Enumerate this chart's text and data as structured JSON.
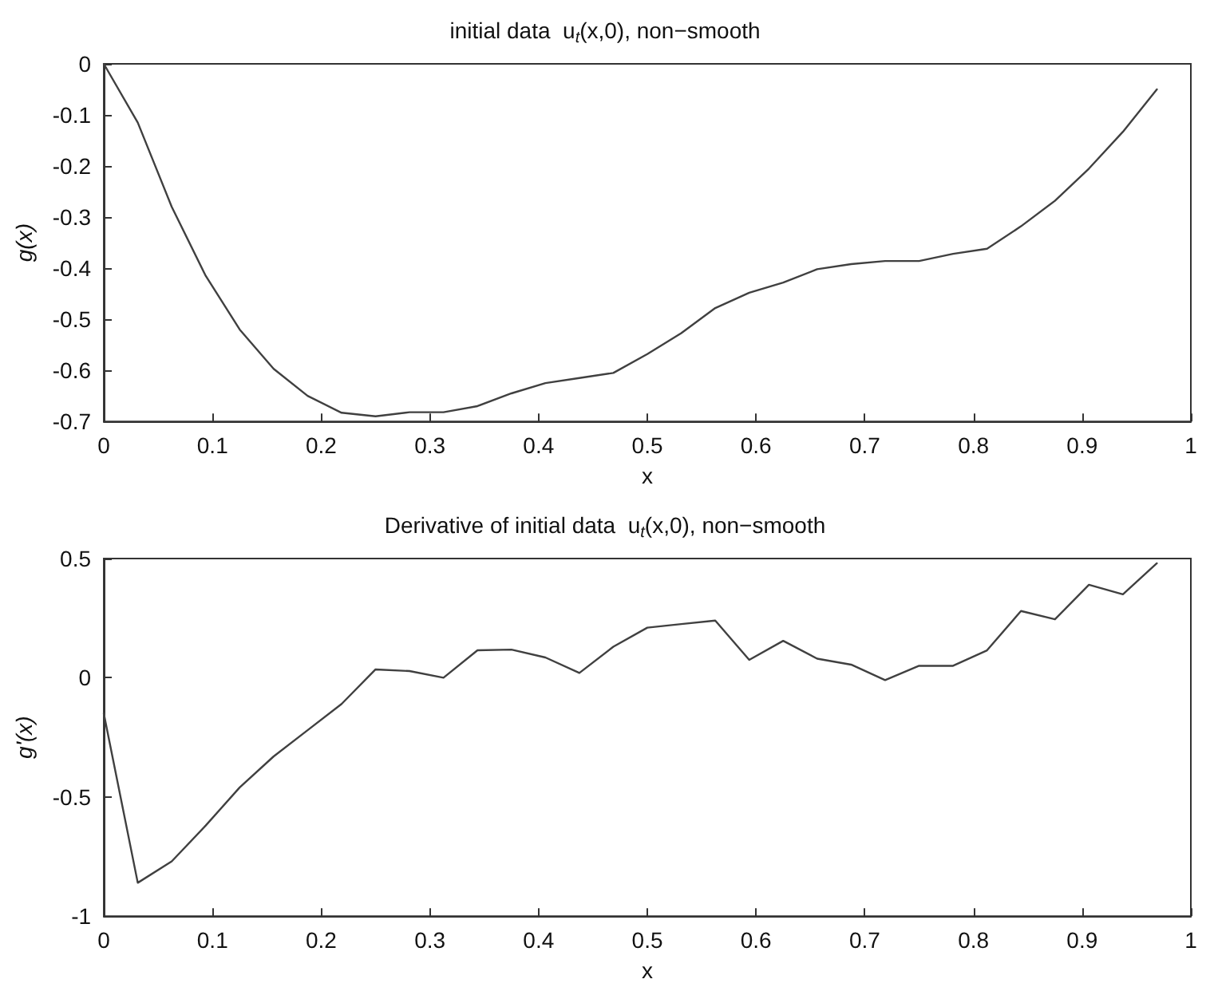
{
  "chart_data": [
    {
      "type": "line",
      "title": "initial data  u$_{t}$(x,0), non−smooth",
      "xlabel": "x",
      "ylabel": "g(x)",
      "x": [
        0,
        0.03125,
        0.0625,
        0.09375,
        0.125,
        0.15625,
        0.1875,
        0.21875,
        0.25,
        0.28125,
        0.3125,
        0.34375,
        0.375,
        0.40625,
        0.4375,
        0.46875,
        0.5,
        0.53125,
        0.5625,
        0.59375,
        0.625,
        0.65625,
        0.6875,
        0.71875,
        0.75,
        0.78125,
        0.8125,
        0.84375,
        0.875,
        0.90625,
        0.9375,
        0.96875
      ],
      "series": [
        {
          "color": "#404040",
          "values": [
            0,
            -0.115,
            -0.28,
            -0.415,
            -0.52,
            -0.597,
            -0.65,
            -0.683,
            -0.69,
            -0.682,
            -0.682,
            -0.67,
            -0.645,
            -0.625,
            -0.615,
            -0.605,
            -0.568,
            -0.527,
            -0.478,
            -0.448,
            -0.428,
            -0.402,
            -0.392,
            -0.386,
            -0.386,
            -0.372,
            -0.362,
            -0.318,
            -0.268,
            -0.205,
            -0.133,
            -0.05
          ]
        }
      ],
      "xlim": [
        0,
        1
      ],
      "xticks": [
        0,
        0.1,
        0.2,
        0.3,
        0.4,
        0.5,
        0.6,
        0.7,
        0.8,
        0.9,
        1
      ],
      "ylim": [
        -0.7,
        0
      ],
      "yticks": [
        -0.7,
        -0.6,
        -0.5,
        -0.4,
        -0.3,
        -0.2,
        -0.1,
        0
      ],
      "grid": false,
      "marker": "none",
      "line_style": "solid"
    },
    {
      "type": "line",
      "title": "Derivative of initial data  u$_{t}$(x,0), non−smooth",
      "xlabel": "x",
      "ylabel": "g'(x)",
      "x": [
        0,
        0.03125,
        0.0625,
        0.09375,
        0.125,
        0.15625,
        0.1875,
        0.21875,
        0.25,
        0.28125,
        0.3125,
        0.34375,
        0.375,
        0.40625,
        0.4375,
        0.46875,
        0.5,
        0.53125,
        0.5625,
        0.59375,
        0.625,
        0.65625,
        0.6875,
        0.71875,
        0.75,
        0.78125,
        0.8125,
        0.84375,
        0.875,
        0.90625,
        0.9375,
        0.96875
      ],
      "series": [
        {
          "color": "#404040",
          "values": [
            -0.15,
            -0.86,
            -0.77,
            -0.62,
            -0.46,
            -0.33,
            -0.22,
            -0.11,
            0.035,
            0.028,
            0,
            0.115,
            0.118,
            0.085,
            0.02,
            0.13,
            0.21,
            0.225,
            0.24,
            0.075,
            0.155,
            0.08,
            0.055,
            -0.01,
            0.05,
            0.05,
            0.115,
            0.28,
            0.245,
            0.39,
            0.35,
            0.48
          ]
        }
      ],
      "xlim": [
        0,
        1
      ],
      "xticks": [
        0,
        0.1,
        0.2,
        0.3,
        0.4,
        0.5,
        0.6,
        0.7,
        0.8,
        0.9,
        1
      ],
      "ylim": [
        -1,
        0.5
      ],
      "yticks": [
        -1,
        -0.5,
        0,
        0.5
      ],
      "grid": false,
      "marker": "none",
      "line_style": "solid"
    }
  ]
}
